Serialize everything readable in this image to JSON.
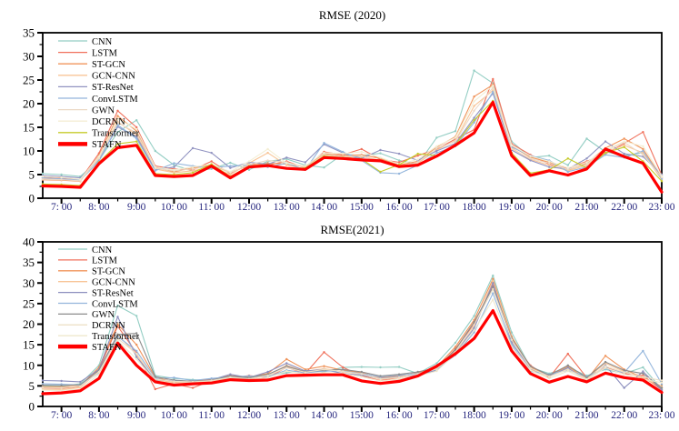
{
  "figure": {
    "background": "#ffffff"
  },
  "chart_data": [
    {
      "type": "line",
      "title": "RMSE (2020)",
      "ylim": [
        0,
        35
      ],
      "ytick_step": 5,
      "ytick_labels": [
        "0",
        "5",
        "10",
        "15",
        "20",
        "25",
        "30",
        "35"
      ],
      "xtick_labels": [
        "7: 00",
        "8: 00",
        "9:00",
        "10: 00",
        "11: 00",
        "12:00",
        "13: 00",
        "14: 00",
        "15:00",
        "16: 00",
        "17: 00",
        "18:00",
        "19: 00",
        "20: 00",
        "21:00",
        "22: 00",
        "23: 00"
      ],
      "xtick_color": "#26267e",
      "legend_position": "top-left",
      "grid": false,
      "x_times": [
        "06:30",
        "07:00",
        "07:30",
        "08:00",
        "08:30",
        "09:00",
        "09:30",
        "10:00",
        "10:30",
        "11:00",
        "11:30",
        "12:00",
        "12:30",
        "13:00",
        "13:30",
        "14:00",
        "14:30",
        "15:00",
        "15:30",
        "16:00",
        "16:30",
        "17:00",
        "17:30",
        "18:00",
        "18:30",
        "19:00",
        "19:30",
        "20:00",
        "20:30",
        "21:00",
        "21:30",
        "22:00",
        "22:30",
        "23:00"
      ],
      "series": [
        {
          "name": "CNN",
          "color": "#94CEC4",
          "emphasis": false,
          "values": [
            5.2,
            5.0,
            4.6,
            8.0,
            14.0,
            16.5,
            10.0,
            7.0,
            5.8,
            6.2,
            7.5,
            6.0,
            7.8,
            8.3,
            7.0,
            6.5,
            9.3,
            9.0,
            9.5,
            8.0,
            7.2,
            12.8,
            14.2,
            27.0,
            24.3,
            12.0,
            8.6,
            9.0,
            7.0,
            12.6,
            9.8,
            9.0,
            9.6,
            4.6
          ]
        },
        {
          "name": "LSTM",
          "color": "#F0715C",
          "emphasis": false,
          "values": [
            4.4,
            4.2,
            3.9,
            9.5,
            18.5,
            15.0,
            6.8,
            6.2,
            6.0,
            7.8,
            5.2,
            7.2,
            7.0,
            7.8,
            6.4,
            9.8,
            9.2,
            10.4,
            8.2,
            7.6,
            9.0,
            10.4,
            12.5,
            14.5,
            25.2,
            11.5,
            9.2,
            7.2,
            6.3,
            7.8,
            9.4,
            11.6,
            14.0,
            4.9
          ]
        },
        {
          "name": "ST-GCN",
          "color": "#F0945B",
          "emphasis": false,
          "values": [
            3.9,
            3.8,
            3.6,
            9.0,
            17.4,
            14.2,
            6.5,
            5.6,
            6.4,
            7.0,
            5.5,
            6.9,
            7.4,
            7.2,
            6.7,
            9.4,
            9.0,
            9.2,
            8.4,
            7.0,
            7.8,
            10.8,
            13.0,
            21.5,
            24.0,
            11.0,
            8.7,
            7.6,
            6.0,
            7.4,
            10.6,
            12.6,
            10.4,
            4.3
          ]
        },
        {
          "name": "GCN-CNN",
          "color": "#F8C597",
          "emphasis": false,
          "values": [
            4.1,
            4.0,
            3.7,
            8.6,
            16.2,
            13.4,
            6.2,
            5.4,
            5.8,
            6.6,
            5.0,
            7.4,
            9.6,
            7.0,
            6.2,
            9.0,
            8.6,
            8.8,
            8.0,
            6.8,
            7.4,
            10.2,
            12.2,
            19.5,
            22.8,
            10.6,
            8.2,
            7.0,
            5.8,
            7.0,
            9.8,
            11.2,
            9.6,
            3.9
          ]
        },
        {
          "name": "ST-ResNet",
          "color": "#9193C1",
          "emphasis": false,
          "values": [
            4.8,
            4.6,
            4.3,
            8.2,
            15.1,
            13.0,
            6.0,
            6.6,
            10.6,
            9.6,
            6.4,
            7.6,
            7.2,
            8.6,
            7.6,
            11.4,
            9.6,
            8.4,
            10.2,
            9.4,
            8.0,
            10.0,
            11.6,
            17.0,
            22.2,
            10.2,
            8.0,
            6.6,
            6.2,
            8.4,
            12.0,
            9.4,
            8.8,
            5.0
          ]
        },
        {
          "name": "ConvLSTM",
          "color": "#93B5DC",
          "emphasis": false,
          "values": [
            4.3,
            4.1,
            3.8,
            7.8,
            15.5,
            12.6,
            5.8,
            7.4,
            6.8,
            6.4,
            6.8,
            7.0,
            6.6,
            7.4,
            6.0,
            11.7,
            9.8,
            8.0,
            5.4,
            5.2,
            7.0,
            9.6,
            11.0,
            16.0,
            22.5,
            10.8,
            9.0,
            8.0,
            5.6,
            6.6,
            9.2,
            8.6,
            10.0,
            4.1
          ]
        },
        {
          "name": "GWN",
          "color": "#ECD9C6",
          "emphasis": false,
          "values": [
            4.0,
            3.9,
            3.7,
            8.4,
            16.0,
            13.8,
            6.3,
            5.8,
            6.2,
            6.8,
            5.4,
            7.1,
            8.0,
            7.6,
            6.5,
            9.2,
            8.8,
            9.0,
            7.8,
            6.6,
            7.6,
            10.6,
            12.0,
            18.5,
            23.4,
            10.4,
            8.4,
            7.4,
            6.1,
            7.2,
            10.0,
            11.8,
            9.2,
            4.4
          ]
        },
        {
          "name": "DCRNN",
          "color": "#F4EED4",
          "emphasis": false,
          "values": [
            4.6,
            4.4,
            4.0,
            8.8,
            16.8,
            14.6,
            6.6,
            6.0,
            6.6,
            7.2,
            5.6,
            7.8,
            10.4,
            7.4,
            6.8,
            9.6,
            9.4,
            9.8,
            8.6,
            7.2,
            8.2,
            11.0,
            12.8,
            20.5,
            23.8,
            11.2,
            8.9,
            7.8,
            6.4,
            7.6,
            10.2,
            12.0,
            11.0,
            4.7
          ]
        },
        {
          "name": "Transformer",
          "color": "#C6CB2B",
          "emphasis": false,
          "values": [
            3.0,
            2.9,
            2.7,
            7.6,
            11.5,
            12.0,
            5.2,
            5.0,
            5.4,
            7.2,
            4.6,
            6.8,
            7.1,
            6.3,
            6.4,
            8.9,
            8.6,
            8.3,
            5.6,
            7.1,
            9.4,
            9.0,
            11.3,
            16.5,
            20.6,
            9.6,
            5.3,
            6.0,
            8.4,
            6.4,
            9.6,
            10.8,
            7.8,
            3.6
          ]
        },
        {
          "name": "STAFN",
          "color": "#FF0000",
          "emphasis": true,
          "values": [
            2.6,
            2.5,
            2.3,
            7.3,
            10.7,
            11.2,
            4.8,
            4.6,
            4.8,
            6.8,
            4.3,
            6.6,
            6.9,
            6.3,
            6.1,
            8.6,
            8.4,
            8.1,
            7.9,
            6.7,
            7.0,
            8.9,
            11.2,
            13.8,
            20.3,
            9.0,
            4.8,
            5.8,
            4.9,
            6.2,
            10.4,
            8.8,
            7.4,
            1.3
          ]
        }
      ]
    },
    {
      "type": "line",
      "title": "RMSE(2021)",
      "ylim": [
        0,
        40
      ],
      "ytick_step": 5,
      "ytick_labels": [
        "0",
        "5",
        "10",
        "15",
        "20",
        "25",
        "30",
        "35",
        "40"
      ],
      "xtick_labels": [
        "7: 00",
        "8: 00",
        "9:00",
        "10: 00",
        "11: 00",
        "12:00",
        "13: 00",
        "14: 00",
        "15:00",
        "16: 00",
        "17: 00",
        "18:00",
        "19: 00",
        "20: 00",
        "21:00",
        "22: 00",
        "23: 00"
      ],
      "xtick_color": "#26267e",
      "legend_position": "top-left",
      "grid": false,
      "x_times": [
        "06:30",
        "07:00",
        "07:30",
        "08:00",
        "08:30",
        "09:00",
        "09:30",
        "10:00",
        "10:30",
        "11:00",
        "11:30",
        "12:00",
        "12:30",
        "13:00",
        "13:30",
        "14:00",
        "14:30",
        "15:00",
        "15:30",
        "16:00",
        "16:30",
        "17:00",
        "17:30",
        "18:00",
        "18:30",
        "19:00",
        "19:30",
        "20:00",
        "20:30",
        "21:00",
        "21:30",
        "22:00",
        "22:30",
        "23:00"
      ],
      "series": [
        {
          "name": "CNN",
          "color": "#94CEC4",
          "emphasis": false,
          "values": [
            5.0,
            4.9,
            5.5,
            10.0,
            24.5,
            22.0,
            7.5,
            6.8,
            6.5,
            6.3,
            7.2,
            6.8,
            7.4,
            8.2,
            8.8,
            8.4,
            9.5,
            9.6,
            9.5,
            9.6,
            8.0,
            10.5,
            15.5,
            22.0,
            31.8,
            18.0,
            9.5,
            8.0,
            9.5,
            7.5,
            9.0,
            8.0,
            9.5,
            4.2
          ]
        },
        {
          "name": "LSTM",
          "color": "#F0715C",
          "emphasis": false,
          "values": [
            4.5,
            4.4,
            4.8,
            9.0,
            19.5,
            13.0,
            4.2,
            5.5,
            4.5,
            6.3,
            6.8,
            7.5,
            7.0,
            9.5,
            8.0,
            13.2,
            9.5,
            7.5,
            6.3,
            7.0,
            7.8,
            9.0,
            14.0,
            20.0,
            29.5,
            16.0,
            10.0,
            7.0,
            12.8,
            7.0,
            9.5,
            8.0,
            7.5,
            4.0
          ]
        },
        {
          "name": "ST-GCN",
          "color": "#F0945B",
          "emphasis": false,
          "values": [
            4.8,
            4.7,
            5.0,
            9.5,
            20.0,
            15.0,
            7.0,
            6.0,
            6.2,
            6.6,
            7.5,
            7.2,
            8.0,
            11.5,
            9.0,
            9.8,
            8.8,
            8.2,
            7.0,
            7.4,
            8.2,
            9.5,
            14.5,
            21.0,
            31.0,
            17.0,
            9.5,
            7.5,
            9.8,
            6.5,
            12.3,
            9.0,
            7.0,
            4.5
          ]
        },
        {
          "name": "GCN-CNN",
          "color": "#F8C597",
          "emphasis": false,
          "values": [
            4.2,
            4.1,
            4.6,
            8.6,
            17.5,
            12.5,
            6.5,
            5.8,
            5.9,
            6.2,
            7.0,
            6.6,
            7.6,
            10.0,
            8.5,
            9.2,
            8.4,
            7.8,
            6.6,
            7.0,
            7.8,
            9.2,
            13.5,
            19.5,
            30.5,
            16.5,
            9.0,
            7.2,
            9.2,
            6.8,
            10.5,
            8.5,
            6.8,
            5.0
          ]
        },
        {
          "name": "ST-ResNet",
          "color": "#8D8FBE",
          "emphasis": false,
          "values": [
            6.3,
            6.2,
            6.0,
            9.0,
            21.8,
            12.0,
            6.5,
            6.2,
            6.0,
            6.5,
            7.8,
            7.0,
            8.4,
            10.5,
            8.6,
            9.0,
            8.0,
            7.6,
            6.8,
            7.2,
            7.6,
            8.8,
            13.0,
            19.0,
            30.0,
            15.5,
            9.2,
            7.4,
            9.4,
            6.2,
            10.0,
            4.5,
            8.5,
            4.0
          ]
        },
        {
          "name": "ConvLSTM",
          "color": "#93B5DC",
          "emphasis": false,
          "values": [
            5.5,
            5.4,
            5.2,
            8.2,
            17.0,
            13.5,
            6.8,
            7.0,
            6.3,
            6.8,
            7.2,
            7.4,
            7.2,
            8.8,
            8.2,
            8.6,
            8.6,
            8.0,
            7.2,
            7.6,
            8.0,
            9.0,
            12.5,
            18.0,
            27.5,
            15.0,
            8.5,
            7.8,
            8.8,
            7.2,
            9.2,
            8.2,
            13.5,
            5.5
          ]
        },
        {
          "name": "GWN",
          "color": "#8C8C8C",
          "emphasis": false,
          "values": [
            5.2,
            5.1,
            5.3,
            8.8,
            17.5,
            17.8,
            7.2,
            6.4,
            6.1,
            6.4,
            7.4,
            7.0,
            7.8,
            9.8,
            8.4,
            8.8,
            9.0,
            8.4,
            7.4,
            7.8,
            8.4,
            9.4,
            13.8,
            20.5,
            29.0,
            16.5,
            9.8,
            7.6,
            10.0,
            7.0,
            10.8,
            8.8,
            8.0,
            4.5
          ]
        },
        {
          "name": "DCRNN",
          "color": "#EDE0C8",
          "emphasis": false,
          "values": [
            4.6,
            4.5,
            4.9,
            8.4,
            16.5,
            12.8,
            6.6,
            6.1,
            6.0,
            6.3,
            7.1,
            6.7,
            7.5,
            9.4,
            8.3,
            9.0,
            8.5,
            7.9,
            6.7,
            7.1,
            7.9,
            9.1,
            13.2,
            19.8,
            28.5,
            16.2,
            9.3,
            7.3,
            9.0,
            6.6,
            9.8,
            8.3,
            7.2,
            6.3
          ]
        },
        {
          "name": "Transformer",
          "color": "#EFE8CD",
          "emphasis": false,
          "values": [
            4.0,
            3.9,
            4.2,
            7.8,
            16.0,
            11.5,
            6.2,
            5.6,
            5.8,
            6.0,
            6.8,
            6.5,
            7.0,
            8.6,
            7.9,
            8.2,
            8.0,
            7.2,
            6.2,
            6.6,
            7.4,
            8.6,
            12.8,
            18.5,
            26.0,
            14.5,
            8.8,
            6.8,
            8.6,
            6.4,
            9.4,
            7.8,
            6.6,
            5.8
          ]
        },
        {
          "name": "STAFN",
          "color": "#FF0000",
          "emphasis": true,
          "values": [
            3.1,
            3.3,
            3.8,
            6.8,
            15.4,
            10.0,
            6.0,
            5.2,
            5.5,
            5.7,
            6.5,
            6.3,
            6.4,
            7.5,
            7.6,
            7.7,
            7.7,
            6.2,
            5.6,
            6.1,
            7.4,
            9.8,
            12.8,
            16.5,
            23.3,
            13.5,
            8.0,
            5.9,
            7.3,
            6.0,
            8.1,
            7.0,
            6.4,
            3.4
          ]
        }
      ]
    }
  ]
}
